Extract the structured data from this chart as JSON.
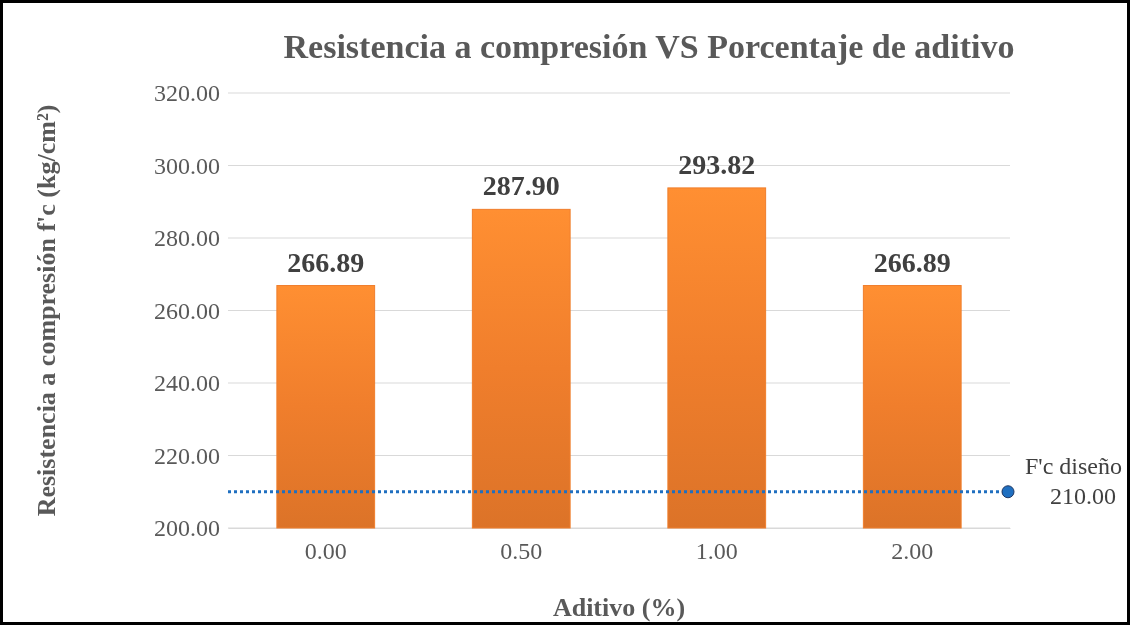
{
  "chart_data": {
    "type": "bar",
    "title": "Resistencia a compresión VS Porcentaje de aditivo",
    "xlabel": "Aditivo (%)",
    "ylabel": "Resistencia a compresión f'c (kg/cm²)",
    "categories": [
      "0.00",
      "0.50",
      "1.00",
      "2.00"
    ],
    "values": [
      266.89,
      287.9,
      293.82,
      266.89
    ],
    "value_labels": [
      "266.89",
      "287.90",
      "293.82",
      "266.89"
    ],
    "color": "#f07e2c",
    "ylim": [
      200,
      320
    ],
    "yticks": [
      {
        "value": 200,
        "label": "200.00"
      },
      {
        "value": 220,
        "label": "220.00"
      },
      {
        "value": 240,
        "label": "240.00"
      },
      {
        "value": 260,
        "label": "260.00"
      },
      {
        "value": 280,
        "label": "280.00"
      },
      {
        "value": 300,
        "label": "300.00"
      },
      {
        "value": 320,
        "label": "320.00"
      }
    ],
    "grid": "y",
    "ref_lines": [
      {
        "axis": "y",
        "value": 210,
        "label": "F'c diseño 210.00",
        "color": "#1f6fc0",
        "line_style": "dotted"
      }
    ]
  }
}
